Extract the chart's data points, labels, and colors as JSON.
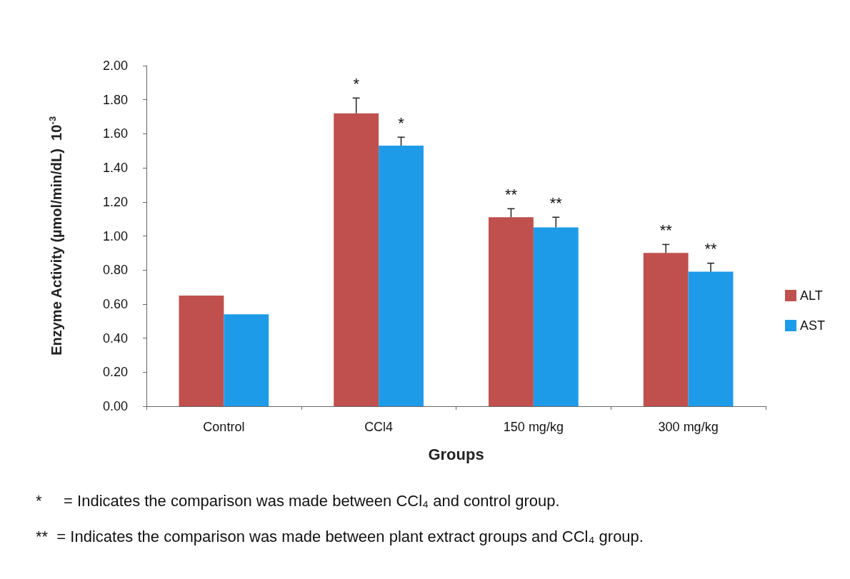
{
  "chart_data": {
    "type": "bar",
    "xlabel": "Groups",
    "ylabel": "Enzyme Activity (µmol/min/dL)  10$^{-3}$",
    "categories": [
      "Control",
      "CCl4",
      "150 mg/kg",
      "300 mg/kg"
    ],
    "series": [
      {
        "name": "ALT",
        "color": "#c0504d",
        "values": [
          0.65,
          1.72,
          1.11,
          0.9
        ],
        "value_labels": [
          null,
          "*",
          "**",
          "**"
        ],
        "errors": [
          null,
          [
            1.72,
            1.81
          ],
          [
            1.11,
            1.16
          ],
          [
            0.9,
            0.95
          ]
        ]
      },
      {
        "name": "AST",
        "color": "#1e9be8",
        "values": [
          0.54,
          1.53,
          1.05,
          0.79
        ],
        "value_labels": [
          null,
          "*",
          "**",
          "**"
        ],
        "errors": [
          null,
          [
            1.53,
            1.58
          ],
          [
            1.05,
            1.11
          ],
          [
            0.79,
            0.84
          ]
        ]
      }
    ],
    "ylim": [
      0,
      2
    ],
    "yticks": [
      {
        "value": 0,
        "label": "0.00"
      },
      {
        "value": 0.2,
        "label": "0.20"
      },
      {
        "value": 0.4,
        "label": "0.40"
      },
      {
        "value": 0.6,
        "label": "0.60"
      },
      {
        "value": 0.8,
        "label": "0.80"
      },
      {
        "value": 1,
        "label": "1.00"
      },
      {
        "value": 1.2,
        "label": "1.20"
      },
      {
        "value": 1.4,
        "label": "1.40"
      },
      {
        "value": 1.6,
        "label": "1.60"
      },
      {
        "value": 1.8,
        "label": "1.80"
      },
      {
        "value": 2,
        "label": "2.00"
      }
    ],
    "grid": false,
    "legend": "right",
    "annotations": [
      "*     = Indicates the comparison was made between CCl₄ and control group.",
      "**  = Indicates the comparison was made between plant extract groups and CCl₄ group."
    ]
  }
}
